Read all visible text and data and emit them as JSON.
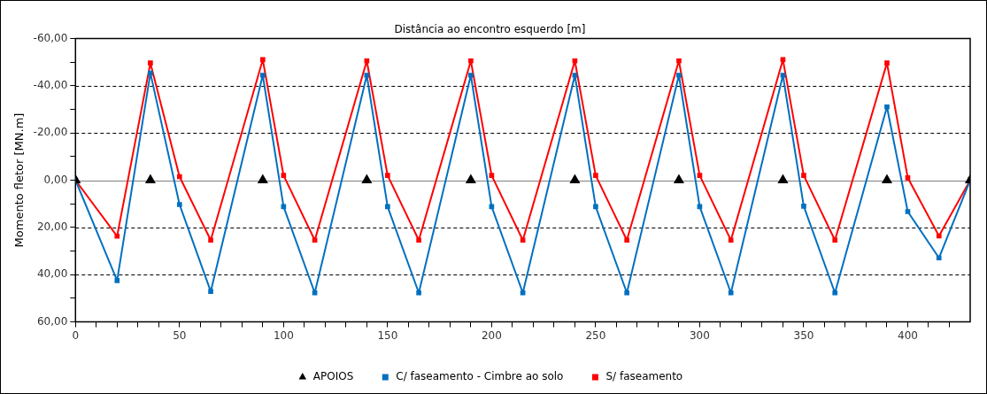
{
  "chart_data": {
    "type": "line",
    "xlabel": "Distância ao encontro esquerdo [m]",
    "ylabel": "Momento fletor [MN.m]",
    "xlim": [
      0,
      430
    ],
    "xticks": [
      {
        "value": 0,
        "label": "0"
      },
      {
        "value": 10,
        "label": null
      },
      {
        "value": 20,
        "label": null
      },
      {
        "value": 30,
        "label": null
      },
      {
        "value": 40,
        "label": null
      },
      {
        "value": 50,
        "label": "50"
      },
      {
        "value": 60,
        "label": null
      },
      {
        "value": 70,
        "label": null
      },
      {
        "value": 80,
        "label": null
      },
      {
        "value": 90,
        "label": null
      },
      {
        "value": 100,
        "label": "100"
      },
      {
        "value": 110,
        "label": null
      },
      {
        "value": 120,
        "label": null
      },
      {
        "value": 130,
        "label": null
      },
      {
        "value": 140,
        "label": null
      },
      {
        "value": 150,
        "label": "150"
      },
      {
        "value": 160,
        "label": null
      },
      {
        "value": 170,
        "label": null
      },
      {
        "value": 180,
        "label": null
      },
      {
        "value": 190,
        "label": null
      },
      {
        "value": 200,
        "label": "200"
      },
      {
        "value": 210,
        "label": null
      },
      {
        "value": 220,
        "label": null
      },
      {
        "value": 230,
        "label": null
      },
      {
        "value": 240,
        "label": null
      },
      {
        "value": 250,
        "label": "250"
      },
      {
        "value": 260,
        "label": null
      },
      {
        "value": 270,
        "label": null
      },
      {
        "value": 280,
        "label": null
      },
      {
        "value": 290,
        "label": null
      },
      {
        "value": 300,
        "label": "300"
      },
      {
        "value": 310,
        "label": null
      },
      {
        "value": 320,
        "label": null
      },
      {
        "value": 330,
        "label": null
      },
      {
        "value": 340,
        "label": null
      },
      {
        "value": 350,
        "label": "350"
      },
      {
        "value": 360,
        "label": null
      },
      {
        "value": 370,
        "label": null
      },
      {
        "value": 380,
        "label": null
      },
      {
        "value": 390,
        "label": null
      },
      {
        "value": 400,
        "label": "400"
      },
      {
        "value": 410,
        "label": null
      },
      {
        "value": 420,
        "label": null
      }
    ],
    "ylim": [
      60,
      -60
    ],
    "yticks": [
      {
        "value": -60,
        "label": "-60,00"
      },
      {
        "value": -50,
        "label": null
      },
      {
        "value": -40,
        "label": "-40,00"
      },
      {
        "value": -30,
        "label": null
      },
      {
        "value": -20,
        "label": "-20,00"
      },
      {
        "value": -10,
        "label": null
      },
      {
        "value": 0,
        "label": "0,00"
      },
      {
        "value": 10,
        "label": null
      },
      {
        "value": 20,
        "label": "20,00"
      },
      {
        "value": 30,
        "label": null
      },
      {
        "value": 40,
        "label": "40,00"
      },
      {
        "value": 50,
        "label": null
      },
      {
        "value": 60,
        "label": "60,00"
      }
    ],
    "grid": "y",
    "ref_lines": [
      {
        "axis": "y",
        "value": 0,
        "color": "#808080"
      }
    ],
    "legend": "bottom",
    "line_style": "solid",
    "series": [
      {
        "name": "S/ faseamento",
        "type": "line",
        "marker": "square",
        "color": "#ff0000",
        "x": [
          0,
          20,
          36,
          50,
          65,
          90,
          100,
          115,
          140,
          150,
          165,
          190,
          200,
          215,
          240,
          250,
          265,
          290,
          300,
          315,
          340,
          350,
          365,
          390,
          400,
          415,
          430
        ],
        "values": [
          0,
          23.7,
          -49.6,
          -1.5,
          25.4,
          -51,
          -2,
          25.4,
          -50.5,
          -2,
          25.4,
          -50.5,
          -2,
          25.4,
          -50.5,
          -2,
          25.4,
          -50.5,
          -2,
          25.4,
          -51,
          -2,
          25.4,
          -49.6,
          -1,
          23.6,
          0
        ]
      },
      {
        "name": "C/ faseamento - Cimbre ao solo",
        "type": "line",
        "marker": "square",
        "color": "#0070c0",
        "x": [
          0,
          20,
          36,
          50,
          65,
          90,
          100,
          115,
          140,
          150,
          165,
          190,
          200,
          215,
          240,
          250,
          265,
          290,
          300,
          315,
          340,
          350,
          365,
          390,
          400,
          415,
          430
        ],
        "values": [
          0,
          42.5,
          -45.3,
          10.3,
          47.1,
          -44.4,
          11.2,
          47.7,
          -44.4,
          11.2,
          47.7,
          -44.4,
          11.2,
          47.7,
          -44.4,
          11.2,
          47.7,
          -44.4,
          11.2,
          47.7,
          -44.4,
          11,
          47.7,
          -31,
          13.3,
          32.9,
          0
        ]
      },
      {
        "name": "APOIOS",
        "type": "scatter",
        "marker": "triangle",
        "color": "#000000",
        "x": [
          0,
          36,
          90,
          140,
          190,
          240,
          290,
          340,
          390,
          430
        ],
        "values": [
          0,
          0,
          0,
          0,
          0,
          0,
          0,
          0,
          0,
          0
        ]
      }
    ]
  }
}
